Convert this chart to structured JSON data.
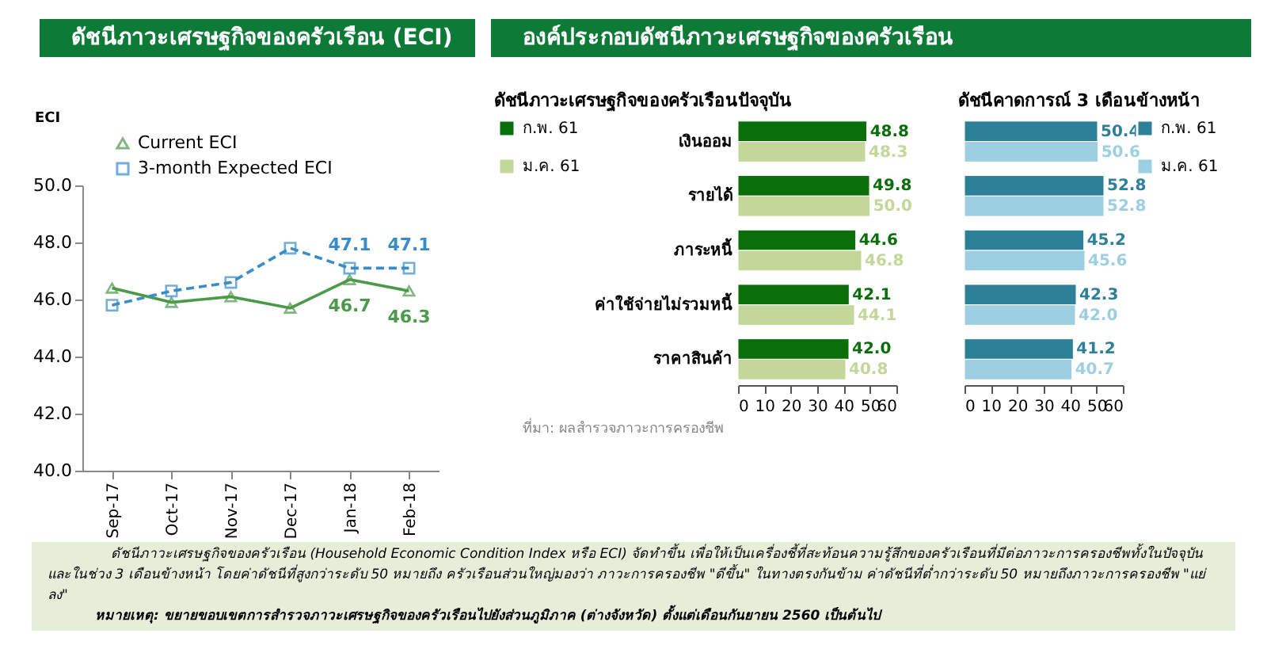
{
  "chart_data": [
    {
      "type": "line",
      "title": "ดัชนีภาวะเศรษฐกิจของครัวเรือน (ECI)",
      "ylabel": "ECI",
      "categories": [
        "Sep-17",
        "Oct-17",
        "Nov-17",
        "Dec-17",
        "Jan-18",
        "Feb-18"
      ],
      "ylim": [
        40,
        50
      ],
      "yticks": [
        {
          "value": 40,
          "label": "40.0"
        },
        {
          "value": 42,
          "label": "42.0"
        },
        {
          "value": 44,
          "label": "44.0"
        },
        {
          "value": 46,
          "label": "46.0"
        },
        {
          "value": 48,
          "label": "48.0"
        },
        {
          "value": 50,
          "label": "50.0"
        }
      ],
      "legend": "top left",
      "grid": false,
      "series": [
        {
          "name": "Current ECI",
          "color": "#4a9a4a",
          "marker": "triangle",
          "line_style": "solid",
          "values": [
            46.4,
            45.9,
            46.1,
            45.7,
            46.7,
            46.3
          ],
          "value_labels": [
            null,
            null,
            null,
            null,
            "46.7",
            "46.3"
          ]
        },
        {
          "name": "3-month Expected ECI",
          "color": "#3a8cc8",
          "marker": "square",
          "line_style": "dashed",
          "values": [
            45.8,
            46.3,
            46.6,
            47.8,
            47.1,
            47.1
          ],
          "value_labels": [
            null,
            null,
            null,
            null,
            "47.1",
            "47.1"
          ]
        }
      ],
      "annotations": [
        "ดัชนีภาวะเศรษฐกิจของครัวเรือน (Household Economic Condition Index หรือ ECI) จัดทำขึ้น เพื่อให้เป็นเครื่องชี้ที่สะท้อนความรู้สึกของครัวเรือนที่มีต่อภาวะการครองชีพทั้งในปัจจุบัน และในช่วง 3 เดือนข้างหน้า โดยค่าดัชนีที่สูงกว่าระดับ 50 หมายถึง ครัวเรือนส่วนใหญ่มองว่า ภาวะการครองชีพ \"ดีขึ้น\" ในทางตรงกันข้าม ค่าดัชนีที่ต่ำกว่าระดับ 50 หมายถึงภาวะการครองชีพ \"แย่ลง\"",
        "หมายเหตุ: ขยายขอบเขตการสำรวจภาวะเศรษฐกิจของครัวเรือนไปยังส่วนภูมิภาค (ต่างจังหวัด) ตั้งแต่เดือนกันยายน 2560 เป็นต้นไป"
      ]
    },
    {
      "type": "bar",
      "orientation": "horizontal",
      "subtitle": "องค์ประกอบดัชนีภาวะเศรษฐกิจของครัวเรือน",
      "title": "ดัชนีภาวะเศรษฐกิจของครัวเรือนปัจจุบัน",
      "categories": [
        "เงินออม",
        "รายได้",
        "ภาระหนี้",
        "ค่าใช้จ่ายไม่รวมหนี้",
        "ราคาสินค้า"
      ],
      "xlim": [
        0,
        60
      ],
      "xticks": [
        0,
        10,
        20,
        30,
        40,
        50,
        60
      ],
      "legend": "left",
      "series": [
        {
          "name": "ก.พ. 61",
          "color": "#0a6e0a",
          "values": [
            48.8,
            49.8,
            44.6,
            42.1,
            42.0
          ],
          "value_labels": [
            "48.8",
            "49.8",
            "44.6",
            "42.1",
            "42.0"
          ]
        },
        {
          "name": "ม.ค. 61",
          "color": "#c3d79a",
          "values": [
            48.3,
            50.0,
            46.8,
            44.1,
            40.8
          ],
          "value_labels": [
            "48.3",
            "50.0",
            "46.8",
            "44.1",
            "40.8"
          ]
        }
      ],
      "annotations": [
        "ที่มา: ผลสำรวจภาวะการครองชีพ"
      ]
    },
    {
      "type": "bar",
      "orientation": "horizontal",
      "title": "ดัชนีคาดการณ์ 3 เดือนข้างหน้า",
      "categories": [
        null,
        null,
        null,
        null,
        null
      ],
      "xlim": [
        0,
        60
      ],
      "xticks": [
        0,
        10,
        20,
        30,
        40,
        50,
        60
      ],
      "legend": "right",
      "series": [
        {
          "name": "ก.พ. 61",
          "color": "#2e7f98",
          "values": [
            50.4,
            52.8,
            45.2,
            42.3,
            41.2
          ],
          "value_labels": [
            "50.4",
            "52.8",
            "45.2",
            "42.3",
            "41.2"
          ]
        },
        {
          "name": "ม.ค. 61",
          "color": "#9dcfe2",
          "values": [
            50.6,
            52.8,
            45.6,
            42.0,
            40.7
          ],
          "value_labels": [
            "50.6",
            "52.8",
            "45.6",
            "42.0",
            "40.7"
          ]
        }
      ]
    }
  ]
}
